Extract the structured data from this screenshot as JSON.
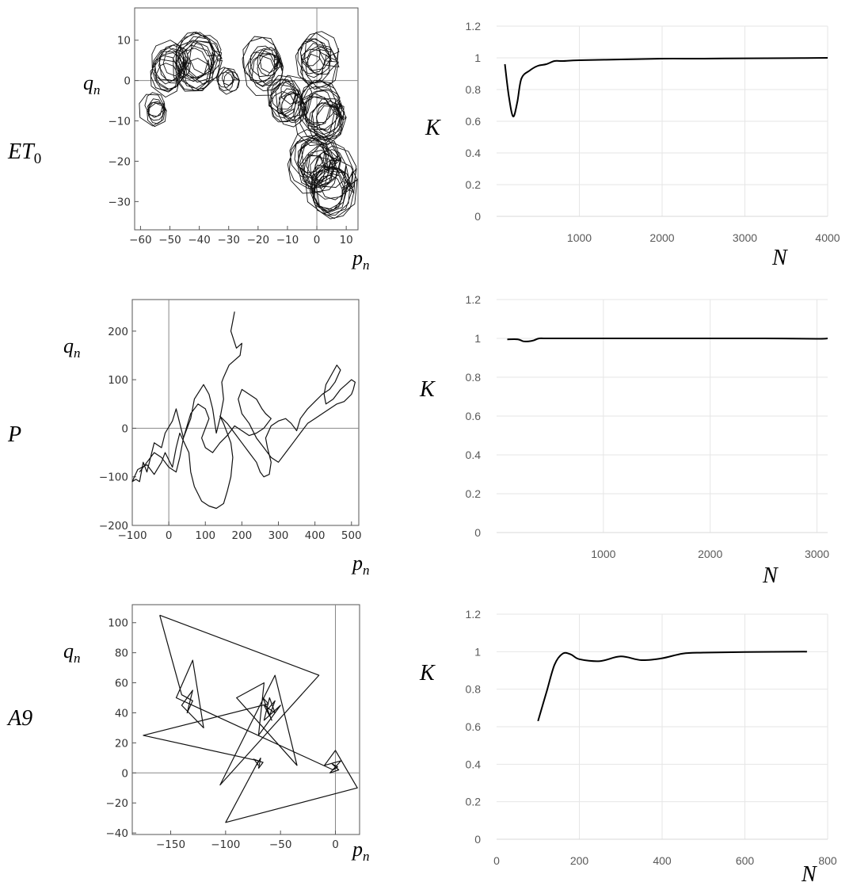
{
  "rows": [
    {
      "label": "ET",
      "label_sub": "0",
      "phase": {
        "xlabel": "p",
        "xlabel_sub": "n",
        "ylabel": "q",
        "ylabel_sub": "n",
        "xticks": [
          "−60",
          "−50",
          "−40",
          "−30",
          "−20",
          "−10",
          "0",
          "10"
        ],
        "yticks": [
          "10",
          "0",
          "−10",
          "−20",
          "−30"
        ],
        "xlim": [
          -62,
          14
        ],
        "ylim": [
          -37,
          18
        ],
        "clusters": [
          {
            "cx": -55,
            "cy": -7,
            "r": 3.5,
            "loops": 6
          },
          {
            "cx": -50,
            "cy": 3,
            "r": 5,
            "loops": 10
          },
          {
            "cx": -40,
            "cy": 4,
            "r": 6,
            "loops": 12
          },
          {
            "cx": -30,
            "cy": 0,
            "r": 3,
            "loops": 5
          },
          {
            "cx": -17,
            "cy": 4,
            "r": 5,
            "loops": 10
          },
          {
            "cx": -10,
            "cy": -5,
            "r": 5,
            "loops": 12
          },
          {
            "cx": 0,
            "cy": 5,
            "r": 5,
            "loops": 10
          },
          {
            "cx": 2,
            "cy": -8,
            "r": 6,
            "loops": 14
          },
          {
            "cx": 0,
            "cy": -20,
            "r": 6,
            "loops": 14
          },
          {
            "cx": 5,
            "cy": -25,
            "r": 7,
            "loops": 12
          }
        ]
      },
      "k_chart": {
        "type": "line",
        "xlabel": "N",
        "ylabel": "K",
        "xticks": [
          1000,
          2000,
          3000,
          4000
        ],
        "yticks": [
          "0",
          "0.2",
          "0.4",
          "0.6",
          "0.8",
          "1",
          "1.2"
        ],
        "xlim": [
          0,
          4000
        ],
        "ylim": [
          0,
          1.2
        ],
        "grid": true,
        "x": [
          100,
          150,
          200,
          250,
          300,
          400,
          500,
          600,
          700,
          800,
          1000,
          1500,
          2000,
          2500,
          3000,
          3500,
          4000
        ],
        "y": [
          0.96,
          0.75,
          0.63,
          0.72,
          0.87,
          0.92,
          0.95,
          0.96,
          0.98,
          0.98,
          0.985,
          0.99,
          0.995,
          0.995,
          0.997,
          0.998,
          1.0
        ]
      }
    },
    {
      "label": "P",
      "label_sub": "",
      "phase": {
        "xlabel": "p",
        "xlabel_sub": "n",
        "ylabel": "q",
        "ylabel_sub": "n",
        "xticks": [
          "−100",
          "0",
          "100",
          "200",
          "300",
          "400",
          "500"
        ],
        "yticks": [
          "200",
          "100",
          "0",
          "−100",
          "−200"
        ],
        "xlim": [
          -100,
          520
        ],
        "ylim": [
          -200,
          265
        ],
        "path": [
          [
            180,
            240
          ],
          [
            170,
            200
          ],
          [
            185,
            165
          ],
          [
            200,
            175
          ],
          [
            195,
            150
          ],
          [
            180,
            140
          ],
          [
            165,
            130
          ],
          [
            150,
            105
          ],
          [
            145,
            95
          ],
          [
            150,
            60
          ],
          [
            140,
            20
          ],
          [
            130,
            -10
          ],
          [
            120,
            40
          ],
          [
            110,
            70
          ],
          [
            95,
            90
          ],
          [
            70,
            60
          ],
          [
            60,
            20
          ],
          [
            40,
            -20
          ],
          [
            30,
            10
          ],
          [
            20,
            40
          ],
          [
            10,
            15
          ],
          [
            -10,
            -10
          ],
          [
            -20,
            -40
          ],
          [
            -40,
            -30
          ],
          [
            -50,
            -60
          ],
          [
            -60,
            -90
          ],
          [
            -70,
            -70
          ],
          [
            -80,
            -110
          ],
          [
            -90,
            -105
          ],
          [
            -100,
            -110
          ],
          [
            -85,
            -85
          ],
          [
            -60,
            -75
          ],
          [
            -40,
            -95
          ],
          [
            -20,
            -70
          ],
          [
            -10,
            -50
          ],
          [
            10,
            -80
          ],
          [
            20,
            -40
          ],
          [
            30,
            -10
          ],
          [
            55,
            -50
          ],
          [
            60,
            -90
          ],
          [
            70,
            -120
          ],
          [
            90,
            -150
          ],
          [
            110,
            -160
          ],
          [
            130,
            -165
          ],
          [
            150,
            -155
          ],
          [
            160,
            -130
          ],
          [
            170,
            -100
          ],
          [
            175,
            -60
          ],
          [
            170,
            -30
          ],
          [
            160,
            -10
          ],
          [
            150,
            10
          ],
          [
            140,
            25
          ],
          [
            160,
            10
          ],
          [
            180,
            -10
          ],
          [
            200,
            -30
          ],
          [
            220,
            -50
          ],
          [
            240,
            -70
          ],
          [
            250,
            -90
          ],
          [
            260,
            -100
          ],
          [
            275,
            -95
          ],
          [
            280,
            -70
          ],
          [
            270,
            -40
          ],
          [
            265,
            -20
          ],
          [
            280,
            5
          ],
          [
            300,
            15
          ],
          [
            320,
            20
          ],
          [
            335,
            10
          ],
          [
            350,
            -5
          ],
          [
            360,
            20
          ],
          [
            380,
            40
          ],
          [
            400,
            55
          ],
          [
            420,
            70
          ],
          [
            440,
            80
          ],
          [
            455,
            95
          ],
          [
            470,
            120
          ],
          [
            460,
            130
          ],
          [
            445,
            110
          ],
          [
            430,
            90
          ],
          [
            425,
            70
          ],
          [
            430,
            50
          ],
          [
            450,
            60
          ],
          [
            470,
            80
          ],
          [
            485,
            90
          ],
          [
            500,
            100
          ],
          [
            510,
            95
          ],
          [
            505,
            80
          ],
          [
            500,
            70
          ],
          [
            480,
            55
          ],
          [
            460,
            50
          ],
          [
            440,
            40
          ],
          [
            420,
            30
          ],
          [
            400,
            20
          ],
          [
            380,
            10
          ],
          [
            360,
            -10
          ],
          [
            340,
            -30
          ],
          [
            320,
            -50
          ],
          [
            300,
            -70
          ],
          [
            280,
            -60
          ],
          [
            260,
            -40
          ],
          [
            240,
            -20
          ],
          [
            220,
            10
          ],
          [
            200,
            30
          ],
          [
            190,
            60
          ],
          [
            200,
            80
          ],
          [
            220,
            70
          ],
          [
            240,
            60
          ],
          [
            255,
            40
          ],
          [
            265,
            30
          ],
          [
            280,
            20
          ],
          [
            260,
            0
          ],
          [
            240,
            -10
          ],
          [
            220,
            -15
          ],
          [
            200,
            -5
          ],
          [
            180,
            5
          ],
          [
            160,
            -15
          ],
          [
            140,
            -30
          ],
          [
            120,
            -50
          ],
          [
            100,
            -40
          ],
          [
            90,
            -20
          ],
          [
            100,
            0
          ],
          [
            110,
            20
          ],
          [
            100,
            40
          ],
          [
            80,
            50
          ],
          [
            60,
            30
          ],
          [
            40,
            -20
          ],
          [
            30,
            -60
          ],
          [
            20,
            -90
          ],
          [
            0,
            -80
          ],
          [
            -20,
            -60
          ],
          [
            -40,
            -50
          ],
          [
            -60,
            -70
          ],
          [
            -80,
            -90
          ]
        ]
      },
      "k_chart": {
        "type": "line",
        "xlabel": "N",
        "ylabel": "K",
        "xticks": [
          1000,
          2000,
          3000
        ],
        "yticks": [
          "0",
          "0.2",
          "0.4",
          "0.6",
          "0.8",
          "1",
          "1.2"
        ],
        "xlim": [
          0,
          3100
        ],
        "ylim": [
          0,
          1.2
        ],
        "grid": true,
        "x": [
          100,
          200,
          250,
          300,
          350,
          400,
          500,
          1000,
          1500,
          2000,
          2500,
          3000,
          3100
        ],
        "y": [
          0.995,
          0.995,
          0.985,
          0.985,
          0.99,
          1.0,
          1.0,
          1.0,
          1.0,
          1.0,
          1.0,
          0.998,
          1.0
        ]
      }
    },
    {
      "label": "A9",
      "label_sub": "",
      "phase": {
        "xlabel": "p",
        "xlabel_sub": "n",
        "ylabel": "q",
        "ylabel_sub": "n",
        "xticks": [
          "−150",
          "−100",
          "−50",
          "0"
        ],
        "yticks": [
          "100",
          "80",
          "60",
          "40",
          "20",
          "0",
          "−20",
          "−40"
        ],
        "xlim": [
          -185,
          22
        ],
        "ylim": [
          -41,
          112
        ],
        "path": [
          [
            -160,
            105
          ],
          [
            -15,
            65
          ],
          [
            -105,
            -8
          ],
          [
            -55,
            65
          ],
          [
            -35,
            5
          ],
          [
            -90,
            50
          ],
          [
            -65,
            60
          ],
          [
            -70,
            25
          ],
          [
            -50,
            45
          ],
          [
            -65,
            35
          ],
          [
            -60,
            50
          ],
          [
            -55,
            40
          ],
          [
            -65,
            45
          ],
          [
            -60,
            38
          ],
          [
            -55,
            48
          ],
          [
            -62,
            42
          ],
          [
            -58,
            35
          ],
          [
            -66,
            50
          ],
          [
            -61,
            46
          ],
          [
            -175,
            25
          ],
          [
            -70,
            8
          ],
          [
            -100,
            -33
          ],
          [
            20,
            -10
          ],
          [
            0,
            15
          ],
          [
            -10,
            5
          ],
          [
            5,
            8
          ],
          [
            -5,
            0
          ],
          [
            3,
            2
          ],
          [
            -3,
            6
          ],
          [
            2,
            4
          ],
          [
            -2,
            2
          ],
          [
            -145,
            50
          ],
          [
            -130,
            75
          ],
          [
            -120,
            30
          ],
          [
            -140,
            45
          ],
          [
            -130,
            55
          ],
          [
            -135,
            40
          ],
          [
            -130,
            48
          ],
          [
            -140,
            52
          ],
          [
            -160,
            105
          ]
        ],
        "mini": [
          [
            -72,
            5
          ],
          [
            -68,
            10
          ],
          [
            -70,
            3
          ],
          [
            -66,
            7
          ],
          [
            -74,
            9
          ],
          [
            -70,
            5
          ]
        ]
      },
      "k_chart": {
        "type": "line",
        "xlabel": "N",
        "ylabel": "K",
        "xticks": [
          0,
          200,
          400,
          600,
          800
        ],
        "yticks": [
          "0",
          "0.2",
          "0.4",
          "0.6",
          "0.8",
          "1",
          "1.2"
        ],
        "xlim": [
          0,
          800
        ],
        "ylim": [
          0,
          1.2
        ],
        "grid": true,
        "x": [
          100,
          120,
          140,
          160,
          180,
          200,
          250,
          300,
          350,
          400,
          450,
          500,
          600,
          750
        ],
        "y": [
          0.63,
          0.78,
          0.93,
          0.99,
          0.985,
          0.96,
          0.95,
          0.975,
          0.955,
          0.965,
          0.99,
          0.995,
          0.998,
          1.0
        ]
      }
    }
  ]
}
